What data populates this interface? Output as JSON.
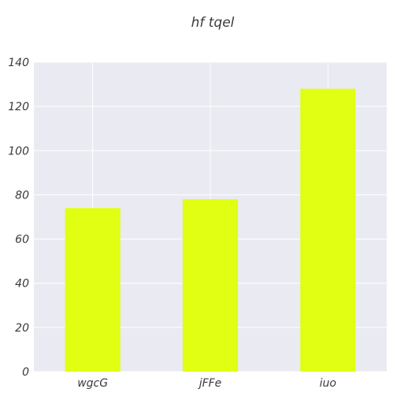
{
  "chart_data": {
    "type": "bar",
    "title": "hf tqel",
    "xlabel": "",
    "ylabel": "",
    "categories": [
      "wgcG",
      "jFFe",
      "iuo"
    ],
    "values": [
      74,
      78,
      128
    ],
    "ylim": [
      0,
      140
    ],
    "yticks": [
      0,
      20,
      40,
      60,
      80,
      100,
      120,
      140
    ],
    "grid": true,
    "legend": "none",
    "colors": {
      "bar": "#e0ff12",
      "plot_background": "#eaeaf2",
      "grid": "#ffffff"
    }
  }
}
